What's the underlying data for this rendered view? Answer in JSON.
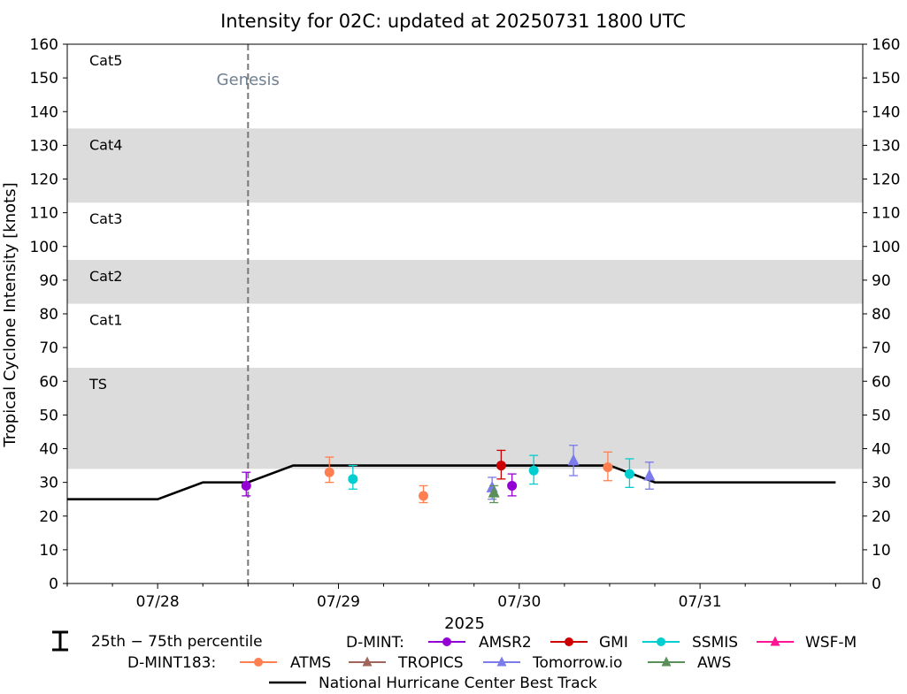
{
  "chart_data": {
    "type": "scatter",
    "title": "Intensity for 02C: updated at 20250731 1800 UTC",
    "ylabel": "Tropical Cyclone Intensity [knots]",
    "xlabel": "2025",
    "ylim": [
      0,
      160
    ],
    "xlim_days": [
      27.5,
      31.9
    ],
    "yticks": [
      "0",
      "10",
      "20",
      "30",
      "40",
      "50",
      "60",
      "70",
      "80",
      "90",
      "100",
      "110",
      "120",
      "130",
      "140",
      "150",
      "160"
    ],
    "xticks": [
      {
        "day": 28,
        "label": "07/28"
      },
      {
        "day": 29,
        "label": "07/29"
      },
      {
        "day": 30,
        "label": "07/30"
      },
      {
        "day": 31,
        "label": "07/31"
      }
    ],
    "category_bands": [
      {
        "name": "TS",
        "min": 34,
        "max": 64,
        "shaded": true
      },
      {
        "name": "Cat1",
        "min": 64,
        "max": 83,
        "shaded": false
      },
      {
        "name": "Cat2",
        "min": 83,
        "max": 96,
        "shaded": true
      },
      {
        "name": "Cat3",
        "min": 96,
        "max": 113,
        "shaded": false
      },
      {
        "name": "Cat4",
        "min": 113,
        "max": 135,
        "shaded": true
      },
      {
        "name": "Cat5",
        "min": 135,
        "max": 160,
        "shaded": false
      }
    ],
    "genesis": {
      "label": "Genesis",
      "day": 28.5
    },
    "best_track": {
      "name": "National Hurricane Center Best Track",
      "x": [
        27.5,
        28.0,
        28.25,
        28.5,
        28.75,
        29.0,
        29.25,
        29.5,
        29.75,
        30.0,
        30.25,
        30.5,
        30.75,
        31.0,
        31.25,
        31.5,
        31.75
      ],
      "y": [
        25,
        25,
        30,
        30,
        35,
        35,
        35,
        35,
        35,
        35,
        35,
        35,
        30,
        30,
        30,
        30,
        30
      ]
    },
    "series": [
      {
        "name": "AMSR2",
        "group": "D-MINT",
        "color": "#9400d3",
        "marker": "circle",
        "points": [
          {
            "x": 28.49,
            "y": 29,
            "lo": 26,
            "hi": 33
          },
          {
            "x": 29.96,
            "y": 29,
            "lo": 26,
            "hi": 32.5
          }
        ]
      },
      {
        "name": "GMI",
        "group": "D-MINT",
        "color": "#cc0000",
        "marker": "circle",
        "points": [
          {
            "x": 29.9,
            "y": 35,
            "lo": 31,
            "hi": 39.5
          }
        ]
      },
      {
        "name": "SSMIS",
        "group": "D-MINT",
        "color": "#00ced1",
        "marker": "circle",
        "points": [
          {
            "x": 29.08,
            "y": 31,
            "lo": 28,
            "hi": 35
          },
          {
            "x": 30.08,
            "y": 33.5,
            "lo": 29.5,
            "hi": 38
          },
          {
            "x": 30.61,
            "y": 32.5,
            "lo": 28.5,
            "hi": 37
          }
        ]
      },
      {
        "name": "WSF-M",
        "group": "D-MINT",
        "color": "#ff1493",
        "marker": "triangle",
        "points": []
      },
      {
        "name": "ATMS",
        "group": "D-MINT183",
        "color": "#ff7f50",
        "marker": "circle",
        "points": [
          {
            "x": 28.95,
            "y": 33,
            "lo": 30,
            "hi": 37.5
          },
          {
            "x": 29.47,
            "y": 26,
            "lo": 24,
            "hi": 29
          },
          {
            "x": 30.49,
            "y": 34.5,
            "lo": 30.5,
            "hi": 39
          }
        ]
      },
      {
        "name": "TROPICS",
        "group": "D-MINT183",
        "color": "#a0645a",
        "marker": "triangle",
        "points": []
      },
      {
        "name": "Tomorrow.io",
        "group": "D-MINT183",
        "color": "#7b7bea",
        "marker": "triangle",
        "points": [
          {
            "x": 29.85,
            "y": 28.5,
            "lo": 25,
            "hi": 31.5
          },
          {
            "x": 30.3,
            "y": 36.5,
            "lo": 32,
            "hi": 41
          },
          {
            "x": 30.72,
            "y": 32,
            "lo": 28,
            "hi": 36
          }
        ]
      },
      {
        "name": "AWS",
        "group": "D-MINT183",
        "color": "#5a8f5a",
        "marker": "triangle",
        "points": [
          {
            "x": 29.86,
            "y": 27,
            "lo": 24,
            "hi": 29
          }
        ]
      }
    ],
    "legend": {
      "percentile_label": "25th − 75th percentile",
      "dmint_label": "D-MINT:",
      "dmint183_label": "D-MINT183:",
      "placement": "bottom"
    }
  }
}
